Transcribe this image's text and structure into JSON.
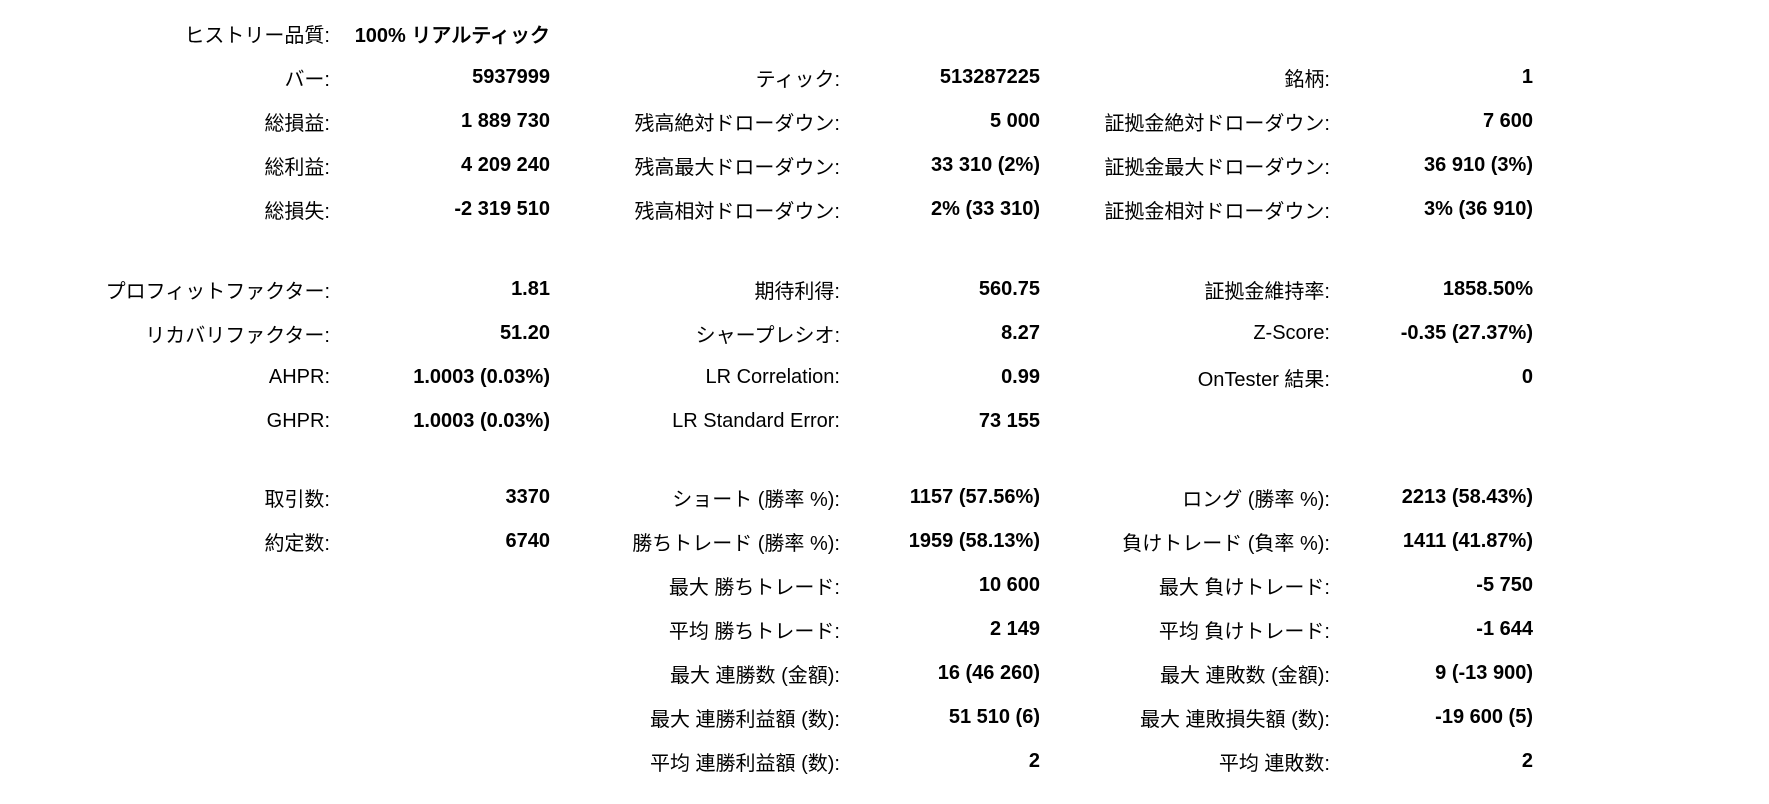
{
  "colors": {
    "background": "#ffffff",
    "text": "#000000"
  },
  "metrics": {
    "history_quality": {
      "label": "ヒストリー品質:",
      "value": "100% リアルティック"
    },
    "bars": {
      "label": "バー:",
      "value": "5937999"
    },
    "ticks": {
      "label": "ティック:",
      "value": "513287225"
    },
    "symbols": {
      "label": "銘柄:",
      "value": "1"
    },
    "total_net_profit": {
      "label": "総損益:",
      "value": "1 889 730"
    },
    "balance_dd_absolute": {
      "label": "残高絶対ドローダウン:",
      "value": "5 000"
    },
    "equity_dd_absolute": {
      "label": "証拠金絶対ドローダウン:",
      "value": "7 600"
    },
    "gross_profit": {
      "label": "総利益:",
      "value": "4 209 240"
    },
    "balance_dd_maximal": {
      "label": "残高最大ドローダウン:",
      "value": "33 310 (2%)"
    },
    "equity_dd_maximal": {
      "label": "証拠金最大ドローダウン:",
      "value": "36 910 (3%)"
    },
    "gross_loss": {
      "label": "総損失:",
      "value": "-2 319 510"
    },
    "balance_dd_relative": {
      "label": "残高相対ドローダウン:",
      "value": "2% (33 310)"
    },
    "equity_dd_relative": {
      "label": "証拠金相対ドローダウン:",
      "value": "3% (36 910)"
    },
    "profit_factor": {
      "label": "プロフィットファクター:",
      "value": "1.81"
    },
    "expected_payoff": {
      "label": "期待利得:",
      "value": "560.75"
    },
    "margin_level": {
      "label": "証拠金維持率:",
      "value": "1858.50%"
    },
    "recovery_factor": {
      "label": "リカバリファクター:",
      "value": "51.20"
    },
    "sharpe_ratio": {
      "label": "シャープレシオ:",
      "value": "8.27"
    },
    "z_score": {
      "label": "Z-Score:",
      "value": "-0.35 (27.37%)"
    },
    "ahpr": {
      "label": "AHPR:",
      "value": "1.0003 (0.03%)"
    },
    "lr_correlation": {
      "label": "LR Correlation:",
      "value": "0.99"
    },
    "ontester_result": {
      "label": "OnTester 結果:",
      "value": "0"
    },
    "ghpr": {
      "label": "GHPR:",
      "value": "1.0003 (0.03%)"
    },
    "lr_standard_error": {
      "label": "LR Standard Error:",
      "value": "73 155"
    },
    "total_trades": {
      "label": "取引数:",
      "value": "3370"
    },
    "short_trades": {
      "label": "ショート (勝率 %):",
      "value": "1157 (57.56%)"
    },
    "long_trades": {
      "label": "ロング (勝率 %):",
      "value": "2213 (58.43%)"
    },
    "total_deals": {
      "label": "約定数:",
      "value": "6740"
    },
    "profit_trades": {
      "label": "勝ちトレード (勝率 %):",
      "value": "1959 (58.13%)"
    },
    "loss_trades": {
      "label": "負けトレード (負率 %):",
      "value": "1411 (41.87%)"
    },
    "largest_profit_trade": {
      "label": "最大 勝ちトレード:",
      "value": "10 600"
    },
    "largest_loss_trade": {
      "label": "最大 負けトレード:",
      "value": "-5 750"
    },
    "average_profit_trade": {
      "label": "平均 勝ちトレード:",
      "value": "2 149"
    },
    "average_loss_trade": {
      "label": "平均 負けトレード:",
      "value": "-1 644"
    },
    "max_consecutive_wins": {
      "label": "最大 連勝数 (金額):",
      "value": "16 (46 260)"
    },
    "max_consecutive_losses": {
      "label": "最大 連敗数 (金額):",
      "value": "9 (-13 900)"
    },
    "max_consecutive_profit": {
      "label": "最大 連勝利益額 (数):",
      "value": "51 510 (6)"
    },
    "max_consecutive_loss": {
      "label": "最大 連敗損失額 (数):",
      "value": "-19 600 (5)"
    },
    "avg_consecutive_wins": {
      "label": "平均 連勝利益額 (数):",
      "value": "2"
    },
    "avg_consecutive_losses": {
      "label": "平均 連敗数:",
      "value": "2"
    }
  }
}
